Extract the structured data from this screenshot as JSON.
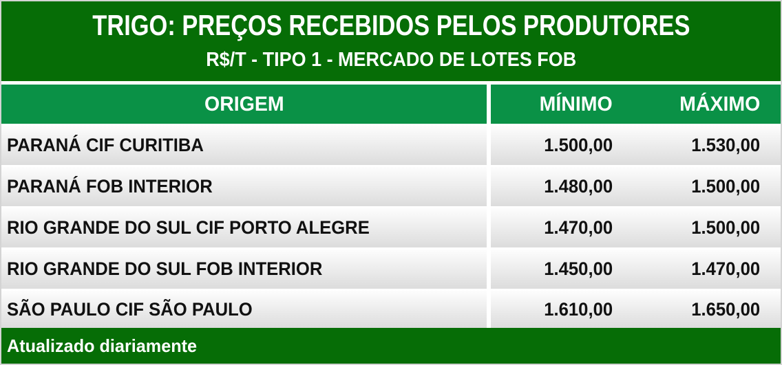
{
  "header": {
    "title": "TRIGO: PREÇOS RECEBIDOS PELOS PRODUTORES",
    "subtitle": "R$/T - TIPO 1 - MERCADO DE LOTES FOB"
  },
  "table": {
    "headers": {
      "origem": "ORIGEM",
      "minimo": "MÍNIMO",
      "maximo": "MÁXIMO"
    },
    "rows": [
      {
        "origem": "PARANÁ CIF CURITIBA",
        "minimo": "1.500,00",
        "maximo": "1.530,00"
      },
      {
        "origem": "PARANÁ FOB INTERIOR",
        "minimo": "1.480,00",
        "maximo": "1.500,00"
      },
      {
        "origem": "RIO GRANDE DO SUL CIF PORTO ALEGRE",
        "minimo": "1.470,00",
        "maximo": "1.500,00"
      },
      {
        "origem": "RIO GRANDE DO SUL FOB INTERIOR",
        "minimo": "1.450,00",
        "maximo": "1.470,00"
      },
      {
        "origem": "SÃO PAULO CIF SÃO PAULO",
        "minimo": "1.610,00",
        "maximo": "1.650,00"
      }
    ]
  },
  "footer": {
    "note": "Atualizado diariamente"
  },
  "colors": {
    "dark_green": "#066d06",
    "bright_green": "#0a9146",
    "row_text": "#111111",
    "border": "#d4d4d4"
  },
  "chart_data": {
    "type": "table",
    "title": "TRIGO: PREÇOS RECEBIDOS PELOS PRODUTORES",
    "subtitle": "R$/T - TIPO 1 - MERCADO DE LOTES FOB",
    "unit": "R$/T",
    "columns": [
      "ORIGEM",
      "MÍNIMO",
      "MÁXIMO"
    ],
    "rows": [
      [
        "PARANÁ CIF CURITIBA",
        1500.0,
        1530.0
      ],
      [
        "PARANÁ FOB INTERIOR",
        1480.0,
        1500.0
      ],
      [
        "RIO GRANDE DO SUL CIF PORTO ALEGRE",
        1470.0,
        1500.0
      ],
      [
        "RIO GRANDE DO SUL FOB INTERIOR",
        1450.0,
        1470.0
      ],
      [
        "SÃO PAULO CIF SÃO PAULO",
        1610.0,
        1650.0
      ]
    ],
    "footnote": "Atualizado diariamente"
  }
}
